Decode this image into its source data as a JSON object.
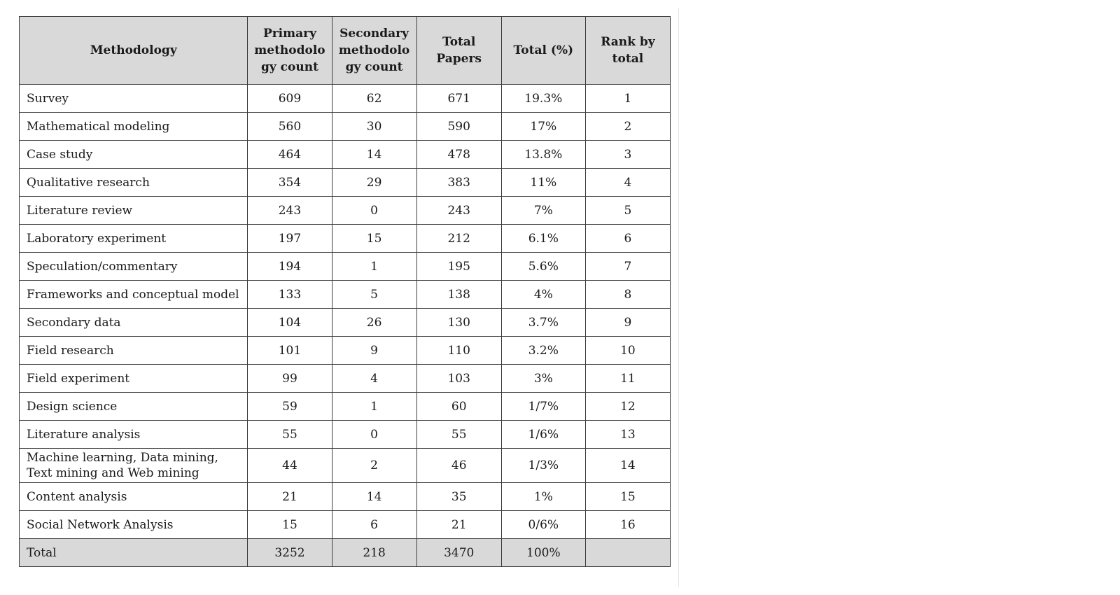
{
  "table": {
    "headers": {
      "methodology": "Methodology",
      "primary": "Primary methodolo gy count",
      "secondary": "Secondary methodolo gy count",
      "total_papers": "Total Papers",
      "total_pct": "Total (%)",
      "rank": "Rank by total"
    },
    "rows": [
      {
        "name": "Survey",
        "primary": "609",
        "secondary": "62",
        "total": "671",
        "pct": "19.3%",
        "rank": "1"
      },
      {
        "name": "Mathematical modeling",
        "primary": "560",
        "secondary": "30",
        "total": "590",
        "pct": "17%",
        "rank": "2"
      },
      {
        "name": "Case study",
        "primary": "464",
        "secondary": "14",
        "total": "478",
        "pct": "13.8%",
        "rank": "3"
      },
      {
        "name": "Qualitative research",
        "primary": "354",
        "secondary": "29",
        "total": "383",
        "pct": "11%",
        "rank": "4"
      },
      {
        "name": "Literature review",
        "primary": "243",
        "secondary": "0",
        "total": "243",
        "pct": "7%",
        "rank": "5"
      },
      {
        "name": "Laboratory experiment",
        "primary": "197",
        "secondary": "15",
        "total": "212",
        "pct": "6.1%",
        "rank": "6"
      },
      {
        "name": "Speculation/commentary",
        "primary": "194",
        "secondary": "1",
        "total": "195",
        "pct": "5.6%",
        "rank": "7"
      },
      {
        "name": "Frameworks and conceptual model",
        "primary": "133",
        "secondary": "5",
        "total": "138",
        "pct": "4%",
        "rank": "8"
      },
      {
        "name": "Secondary data",
        "primary": "104",
        "secondary": "26",
        "total": "130",
        "pct": "3.7%",
        "rank": "9"
      },
      {
        "name": "Field research",
        "primary": "101",
        "secondary": "9",
        "total": "110",
        "pct": "3.2%",
        "rank": "10"
      },
      {
        "name": "Field experiment",
        "primary": "99",
        "secondary": "4",
        "total": "103",
        "pct": "3%",
        "rank": "11"
      },
      {
        "name": "Design science",
        "primary": "59",
        "secondary": "1",
        "total": "60",
        "pct": "1/7%",
        "rank": "12"
      },
      {
        "name": "Literature analysis",
        "primary": "55",
        "secondary": "0",
        "total": "55",
        "pct": "1/6%",
        "rank": "13"
      },
      {
        "name": "Machine learning, Data mining, Text mining and Web mining",
        "primary": "44",
        "secondary": "2",
        "total": "46",
        "pct": "1/3%",
        "rank": "14"
      },
      {
        "name": "Content analysis",
        "primary": "21",
        "secondary": "14",
        "total": "35",
        "pct": "1%",
        "rank": "15"
      },
      {
        "name": "Social Network Analysis",
        "primary": "15",
        "secondary": "6",
        "total": "21",
        "pct": "0/6%",
        "rank": "16"
      }
    ],
    "total_row": {
      "name": "Total",
      "primary": "3252",
      "secondary": "218",
      "total": "3470",
      "pct": "100%",
      "rank": ""
    }
  }
}
